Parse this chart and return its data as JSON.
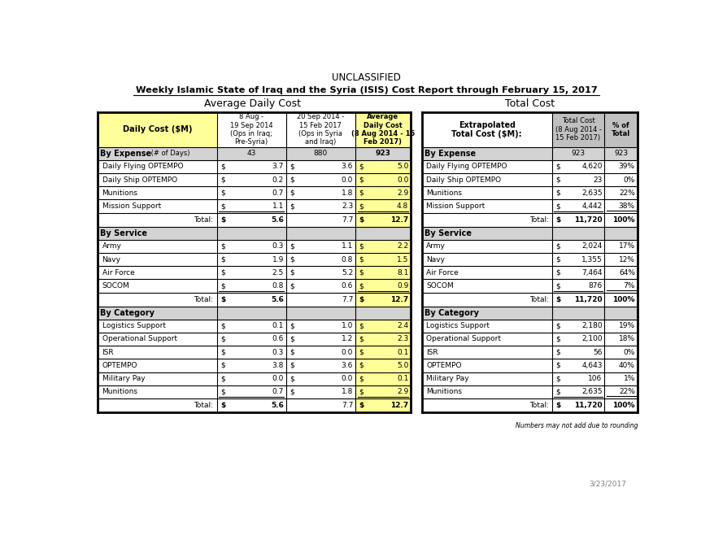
{
  "title_unclassified": "UNCLASSIFIED",
  "title_main": "Weekly Islamic State of Iraq and the Syria (ISIS) Cost Report through February 15, 2017",
  "section_left_header": "Average Daily Cost",
  "section_right_header": "Total Cost",
  "col_headers": {
    "left": [
      "Daily Cost ($M)",
      "8 Aug -\n19 Sep 2014\n(Ops in Iraq;\nPre-Syria)",
      "20 Sep 2014 -\n15 Feb 2017\n(Ops in Syria\nand Iraq)",
      "Average\nDaily Cost\n(8 Aug 2014 - 15\nFeb 2017)"
    ],
    "right": [
      "Extrapolated\nTotal Cost ($M):",
      "Total Cost\n(8 Aug 2014 -\n15 Feb 2017)",
      "% of\nTotal"
    ]
  },
  "by_expense": {
    "header": "By Expense",
    "days": [
      "43",
      "880",
      "923"
    ],
    "days_label": "# of Days",
    "right_days": [
      "923",
      "923"
    ],
    "rows": [
      {
        "label": "Daily Flying OPTEMPO",
        "v1": "3.7",
        "v2": "3.6",
        "v3": "5.0",
        "tc": "4,620",
        "pct": "39%"
      },
      {
        "label": "Daily Ship OPTEMPO",
        "v1": "0.2",
        "v2": "0.0",
        "v3": "0.0",
        "tc": "23",
        "pct": "0%"
      },
      {
        "label": "Munitions",
        "v1": "0.7",
        "v2": "1.8",
        "v3": "2.9",
        "tc": "2,635",
        "pct": "22%"
      },
      {
        "label": "Mission Support",
        "v1": "1.1",
        "v2": "2.3",
        "v3": "4.8",
        "tc": "4,442",
        "pct": "38%"
      }
    ],
    "total": {
      "v1": "5.6",
      "v2": "7.7",
      "v3": "12.7",
      "tc": "11,720",
      "pct": "100%"
    }
  },
  "by_service": {
    "header": "By Service",
    "rows": [
      {
        "label": "Army",
        "v1": "0.3",
        "v2": "1.1",
        "v3": "2.2",
        "tc": "2,024",
        "pct": "17%"
      },
      {
        "label": "Navy",
        "v1": "1.9",
        "v2": "0.8",
        "v3": "1.5",
        "tc": "1,355",
        "pct": "12%"
      },
      {
        "label": "Air Force",
        "v1": "2.5",
        "v2": "5.2",
        "v3": "8.1",
        "tc": "7,464",
        "pct": "64%"
      },
      {
        "label": "SOCOM",
        "v1": "0.8",
        "v2": "0.6",
        "v3": "0.9",
        "tc": "876",
        "pct": "7%"
      }
    ],
    "total": {
      "v1": "5.6",
      "v2": "7.7",
      "v3": "12.7",
      "tc": "11,720",
      "pct": "100%"
    }
  },
  "by_category": {
    "header": "By Category",
    "rows": [
      {
        "label": "Logistics Support",
        "v1": "0.1",
        "v2": "1.0",
        "v3": "2.4",
        "tc": "2,180",
        "pct": "19%"
      },
      {
        "label": "Operational Support",
        "v1": "0.6",
        "v2": "1.2",
        "v3": "2.3",
        "tc": "2,100",
        "pct": "18%"
      },
      {
        "label": "ISR",
        "v1": "0.3",
        "v2": "0.0",
        "v3": "0.1",
        "tc": "56",
        "pct": "0%"
      },
      {
        "label": "OPTEMPO",
        "v1": "3.8",
        "v2": "3.6",
        "v3": "5.0",
        "tc": "4,643",
        "pct": "40%"
      },
      {
        "label": "Military Pay",
        "v1": "0.0",
        "v2": "0.0",
        "v3": "0.1",
        "tc": "106",
        "pct": "1%"
      },
      {
        "label": "Munitions",
        "v1": "0.7",
        "v2": "1.8",
        "v3": "2.9",
        "tc": "2,635",
        "pct": "22%"
      }
    ],
    "total": {
      "v1": "5.6",
      "v2": "7.7",
      "v3": "12.7",
      "tc": "11,720",
      "pct": "100%"
    }
  },
  "footnote": "Numbers may not add due to rounding",
  "date": "3/23/2017",
  "colors": {
    "header_yellow": "#FFFF99",
    "header_gray": "#C0C0C0",
    "section_gray": "#D3D3D3",
    "white": "#FFFFFF",
    "border": "#000000"
  }
}
